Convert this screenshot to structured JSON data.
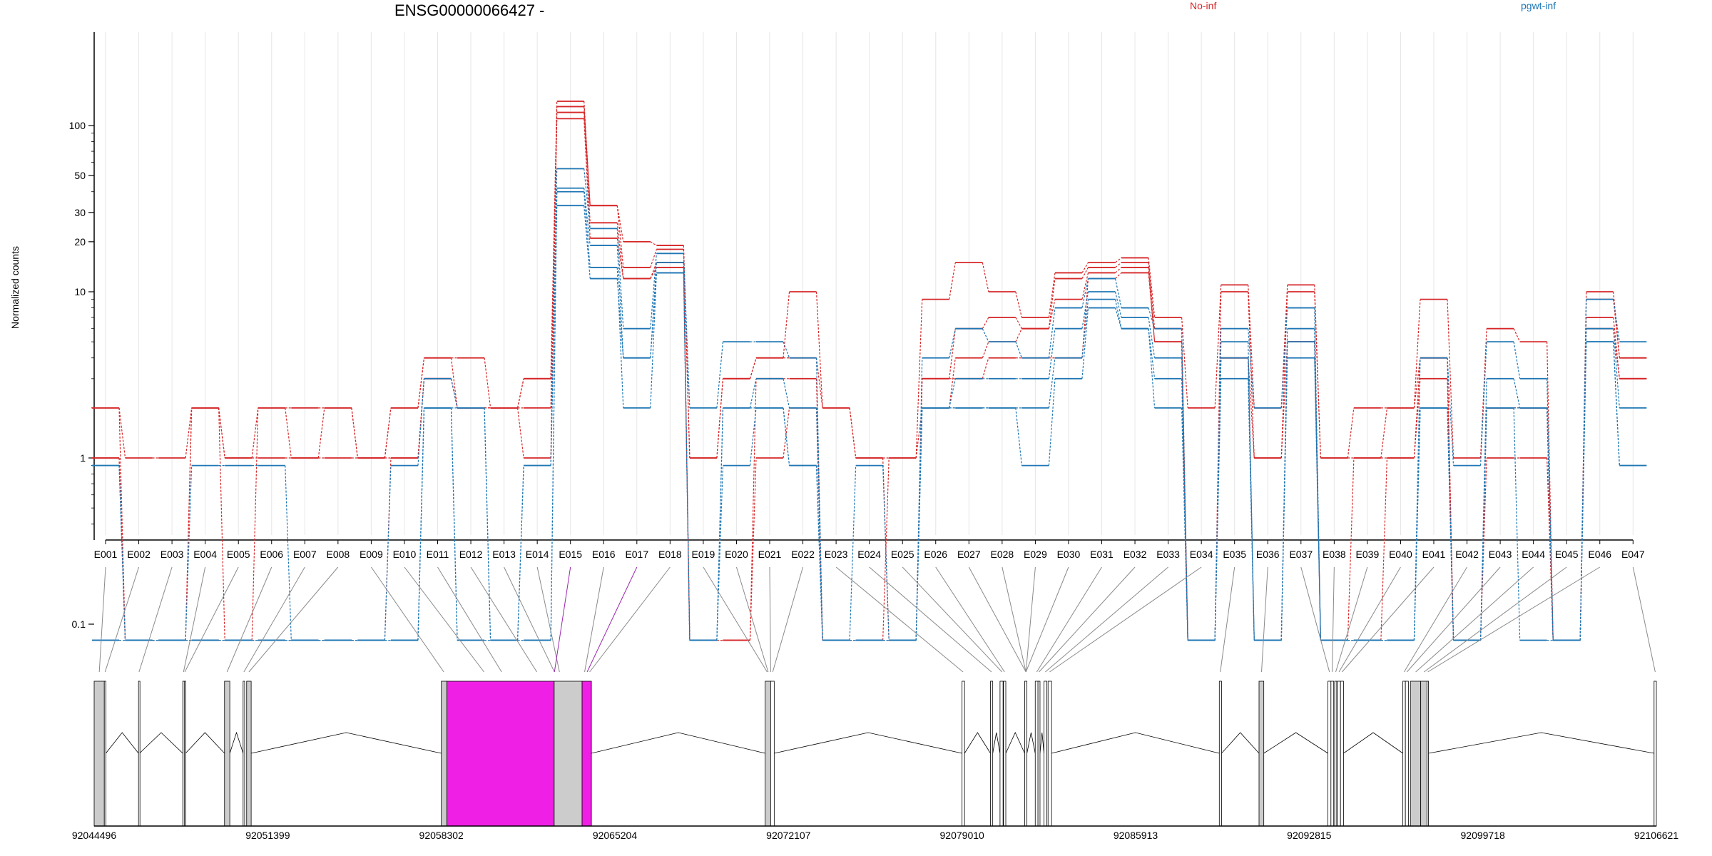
{
  "chart_data": {
    "type": "line",
    "title": "ENSG00000066427 -",
    "ylabel": "Normalized counts",
    "xlabel": "",
    "y_scale": "log",
    "ylim": [
      0.07,
      150
    ],
    "y_ticks": [
      "0.1",
      "1",
      "10",
      "20",
      "30",
      "50",
      "100"
    ],
    "grid": "vertical",
    "legend_placement": "top-right",
    "categories": [
      "E001",
      "E002",
      "E003",
      "E004",
      "E005",
      "E006",
      "E007",
      "E008",
      "E009",
      "E010",
      "E011",
      "E012",
      "E013",
      "E014",
      "E015",
      "E016",
      "E017",
      "E018",
      "E019",
      "E020",
      "E021",
      "E022",
      "E023",
      "E024",
      "E025",
      "E026",
      "E027",
      "E028",
      "E029",
      "E030",
      "E031",
      "E032",
      "E033",
      "E034",
      "E035",
      "E036",
      "E037",
      "E038",
      "E039",
      "E040",
      "E041",
      "E042",
      "E043",
      "E044",
      "E045",
      "E046",
      "E047"
    ],
    "groups": [
      {
        "name": "No-inf",
        "color": "#d62728"
      },
      {
        "name": "pgwt-inf",
        "color": "#1f77b4"
      }
    ],
    "series": [
      {
        "group": "No-inf",
        "values": [
          2,
          1,
          1,
          2,
          1,
          2,
          2,
          2,
          1,
          2,
          4,
          4,
          2,
          3,
          140,
          33,
          20,
          19,
          1,
          3,
          4,
          10,
          2,
          1,
          1,
          9,
          15,
          10,
          7,
          13,
          15,
          16,
          7,
          2,
          11,
          2,
          11,
          1,
          1,
          2,
          9,
          1,
          6,
          5,
          0.08,
          10,
          4
        ]
      },
      {
        "group": "No-inf",
        "values": [
          1,
          0.08,
          0.08,
          2,
          0.08,
          2,
          1,
          2,
          1,
          2,
          4,
          2,
          2,
          2,
          130,
          33,
          14,
          18,
          1,
          3,
          4,
          4,
          2,
          1,
          0.08,
          3,
          6,
          7,
          6,
          12,
          14,
          15,
          6,
          0.08,
          10,
          1,
          10,
          1,
          2,
          2,
          4,
          0.08,
          2,
          2,
          0.08,
          9,
          4
        ]
      },
      {
        "group": "No-inf",
        "values": [
          1,
          0.08,
          0.08,
          2,
          1,
          1,
          1,
          1,
          1,
          1,
          3,
          2,
          2,
          1,
          120,
          26,
          12,
          15,
          0.08,
          0.08,
          1,
          2,
          0.08,
          0.08,
          1,
          2,
          4,
          5,
          6,
          9,
          13,
          14,
          5,
          0.08,
          4,
          1,
          5,
          0.08,
          1,
          1,
          3,
          0.08,
          2,
          2,
          0.08,
          7,
          3
        ]
      },
      {
        "group": "No-inf",
        "values": [
          2,
          0.08,
          0.08,
          0.08,
          0.08,
          0.08,
          0.08,
          0.08,
          0.08,
          1,
          3,
          2,
          2,
          3,
          110,
          21,
          12,
          14,
          0.08,
          0.08,
          3,
          3,
          0.08,
          0.08,
          0.08,
          3,
          3,
          4,
          4,
          4,
          12,
          13,
          5,
          0.08,
          4,
          0.08,
          5,
          0.08,
          0.08,
          1,
          4,
          0.08,
          1,
          1,
          0.08,
          6,
          3
        ]
      },
      {
        "group": "pgwt-inf",
        "values": [
          0.9,
          0.08,
          0.08,
          0.9,
          0.9,
          0.9,
          0.08,
          0.08,
          0.08,
          0.9,
          3,
          2,
          0.08,
          0.9,
          55,
          24,
          6,
          17,
          2,
          5,
          5,
          4,
          0.08,
          0.9,
          0.08,
          4,
          6,
          5,
          4,
          8,
          12,
          8,
          6,
          0.08,
          6,
          2,
          8,
          0.08,
          0.08,
          0.08,
          4,
          0.9,
          5,
          3,
          0.08,
          9,
          5
        ]
      },
      {
        "group": "pgwt-inf",
        "values": [
          0.08,
          0.08,
          0.08,
          0.08,
          0.08,
          0.08,
          0.08,
          0.08,
          0.08,
          0.08,
          2,
          2,
          0.08,
          0.08,
          42,
          19,
          4,
          15,
          0.08,
          2,
          3,
          2,
          0.08,
          0.08,
          0.08,
          2,
          3,
          3,
          3,
          6,
          10,
          7,
          4,
          0.08,
          5,
          0.08,
          6,
          0.08,
          0.08,
          0.08,
          2,
          0.08,
          3,
          2,
          0.08,
          6,
          2
        ]
      },
      {
        "group": "pgwt-inf",
        "values": [
          0.08,
          0.08,
          0.08,
          0.08,
          0.08,
          0.08,
          0.08,
          0.08,
          0.08,
          0.08,
          2,
          0.08,
          0.08,
          0.08,
          40,
          14,
          2,
          13,
          0.08,
          0.9,
          2,
          0.9,
          0.08,
          0.08,
          0.08,
          2,
          2,
          2,
          0.9,
          3,
          8,
          6,
          2,
          0.08,
          3,
          0.08,
          4,
          0.08,
          0.08,
          0.08,
          2,
          0.08,
          2,
          0.08,
          0.08,
          5,
          0.9
        ]
      },
      {
        "group": "pgwt-inf",
        "values": [
          0.9,
          0.08,
          0.08,
          0.08,
          0.08,
          0.08,
          0.08,
          0.08,
          0.08,
          0.08,
          2,
          0.08,
          0.08,
          0.9,
          33,
          12,
          4,
          13,
          0.08,
          2,
          2,
          0.9,
          0.08,
          0.08,
          0.08,
          2,
          2,
          2,
          2,
          4,
          9,
          6,
          3,
          0.08,
          4,
          0.08,
          5,
          0.08,
          0.08,
          0.08,
          2,
          0.08,
          2,
          2,
          0.08,
          5,
          0.9
        ]
      }
    ],
    "gene_model": {
      "coordinate_ticks": [
        "92044496",
        "92051399",
        "92058302",
        "92065204",
        "92072107",
        "92079010",
        "92085913",
        "92092815",
        "92099718",
        "92106621"
      ],
      "coord_range": [
        92044496,
        92106621
      ],
      "highlight_color": "#f01fe6",
      "highlighted_exons": [
        "E015",
        "E017"
      ],
      "exons": [
        {
          "start": 92044496,
          "end": 92044900
        },
        {
          "start": 92044900,
          "end": 92044960
        },
        {
          "start": 92046260,
          "end": 92046300
        },
        {
          "start": 92048020,
          "end": 92048080
        },
        {
          "start": 92048080,
          "end": 92048130
        },
        {
          "start": 92049680,
          "end": 92049890
        },
        {
          "start": 92050420,
          "end": 92050480
        },
        {
          "start": 92050560,
          "end": 92050740
        },
        {
          "start": 92058302,
          "end": 92058520
        },
        {
          "start": 92058520,
          "end": 92062790,
          "highlight": true
        },
        {
          "start": 92062790,
          "end": 92063900
        },
        {
          "start": 92063900,
          "end": 92064270,
          "highlight": true
        },
        {
          "start": 92071180,
          "end": 92071400
        },
        {
          "start": 92071400,
          "end": 92071540
        },
        {
          "start": 92079010,
          "end": 92079110
        },
        {
          "start": 92080140,
          "end": 92080230
        },
        {
          "start": 92080520,
          "end": 92080640
        },
        {
          "start": 92080660,
          "end": 92080750
        },
        {
          "start": 92081500,
          "end": 92081590
        },
        {
          "start": 92081920,
          "end": 92082030
        },
        {
          "start": 92082030,
          "end": 92082110
        },
        {
          "start": 92082270,
          "end": 92082380
        },
        {
          "start": 92082430,
          "end": 92082570
        },
        {
          "start": 92089240,
          "end": 92089330
        },
        {
          "start": 92090820,
          "end": 92091010
        },
        {
          "start": 92093560,
          "end": 92093680
        },
        {
          "start": 92093680,
          "end": 92093790
        },
        {
          "start": 92093830,
          "end": 92093910
        },
        {
          "start": 92093930,
          "end": 92094060
        },
        {
          "start": 92094060,
          "end": 92094180
        },
        {
          "start": 92096540,
          "end": 92096640
        },
        {
          "start": 92096640,
          "end": 92096760
        },
        {
          "start": 92096840,
          "end": 92097250
        },
        {
          "start": 92097250,
          "end": 92097500
        },
        {
          "start": 92097500,
          "end": 92097560
        },
        {
          "start": 92106530,
          "end": 92106621
        }
      ],
      "exon_mapping": [
        92044700,
        92044930,
        92046280,
        92048050,
        92048100,
        92049780,
        92050450,
        92050650,
        92058400,
        92060000,
        92060700,
        92062100,
        92062800,
        92063000,
        92062800,
        92064000,
        92064100,
        92064200,
        92071260,
        92071300,
        92071400,
        92071480,
        92079050,
        92080180,
        92080600,
        92080700,
        92081550,
        92081550,
        92081550,
        92081550,
        92081980,
        92082070,
        92082320,
        92082490,
        92089280,
        92090920,
        92093620,
        92093730,
        92093870,
        92094000,
        92094120,
        92096590,
        92096700,
        92097050,
        92097380,
        92097530,
        92106575
      ]
    }
  }
}
